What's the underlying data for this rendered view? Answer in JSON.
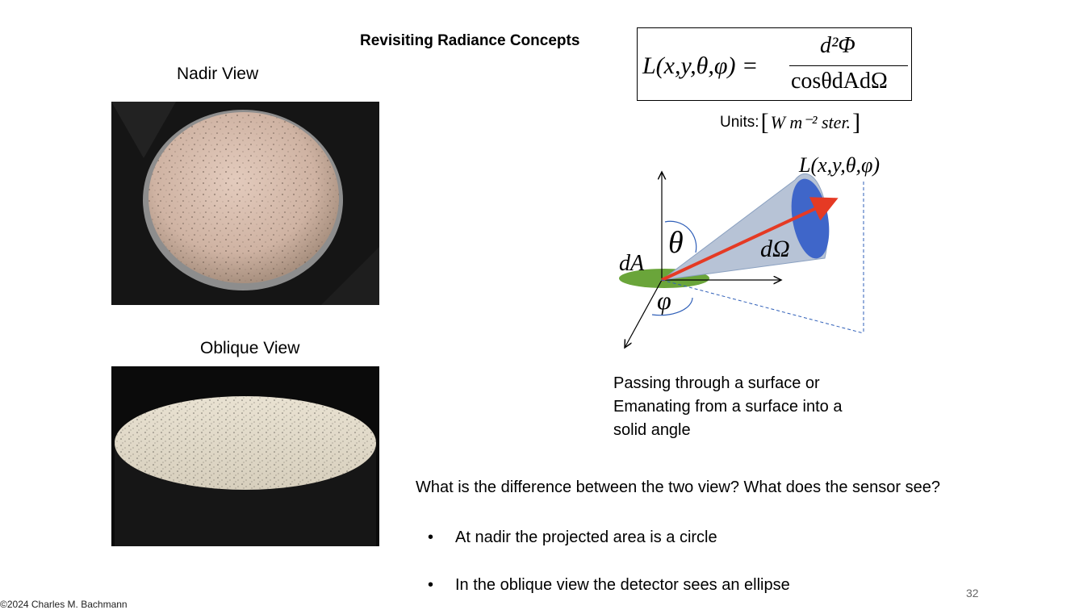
{
  "slide": {
    "title": "Revisiting Radiance Concepts",
    "page_number": "32",
    "footer": "©2024 Charles M. Bachmann"
  },
  "views": {
    "nadir_label": "Nadir View",
    "oblique_label": "Oblique View"
  },
  "formula": {
    "lhs": "L(x,y,θ,φ) =",
    "numerator": "d²Φ",
    "denominator": "cosθdAdΩ"
  },
  "units": {
    "label": "Units:",
    "value": "W  m⁻²  ster."
  },
  "diagram": {
    "radiance_label": "L(x,y,θ,φ)",
    "theta_label": "θ",
    "dA_label": "dA",
    "phi_label": "φ",
    "dOmega_label": "dΩ",
    "colors": {
      "cone_fill": "#b7c3d6",
      "cone_end": "#3f66c9",
      "ray": "#e53a24",
      "area": "#6aa53a",
      "arc": "#2f5fb8"
    }
  },
  "description": [
    "Passing through a surface or",
    "Emanating from a surface into a",
    "solid angle"
  ],
  "question": "What is the difference between the two view?  What does the sensor see?",
  "bullets": [
    "At nadir the projected area is a circle",
    "In the oblique view the detector sees an ellipse"
  ]
}
